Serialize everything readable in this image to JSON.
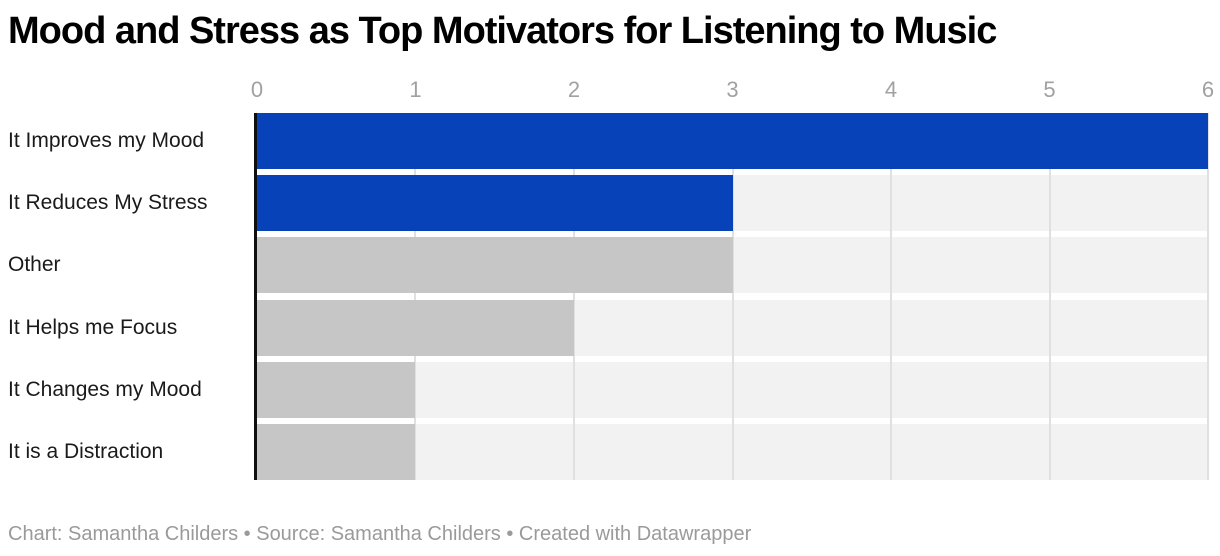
{
  "title": "Mood and Stress as Top Motivators for Listening to Music",
  "chart_data": {
    "type": "bar",
    "orientation": "horizontal",
    "title": "Mood and Stress as Top Motivators for Listening to Music",
    "categories": [
      "It Improves my Mood",
      "It Reduces My Stress",
      "Other",
      "It Helps me Focus",
      "It Changes my Mood",
      "It is a Distraction"
    ],
    "values": [
      6,
      3,
      3,
      2,
      1,
      1
    ],
    "bar_colors": [
      "#0742b8",
      "#0742b8",
      "#c6c6c6",
      "#c6c6c6",
      "#c6c6c6",
      "#c6c6c6"
    ],
    "xlim": [
      0,
      6
    ],
    "x_ticks": [
      0,
      1,
      2,
      3,
      4,
      5,
      6
    ],
    "grid": true,
    "legend": "none",
    "colors": {
      "highlight_bar": "#0742b8",
      "default_bar": "#c6c6c6",
      "row_track": "#f2f2f2",
      "gridline": "#e0e0e0",
      "axis_line": "#0f0f0f",
      "tick_label": "#a1a1a1",
      "category_label": "#1a1a1a",
      "title": "#000000",
      "footer": "#9a9a9a"
    }
  },
  "footer": {
    "text": "Chart: Samantha Childers • Source: Samantha Childers • Created with Datawrapper"
  }
}
